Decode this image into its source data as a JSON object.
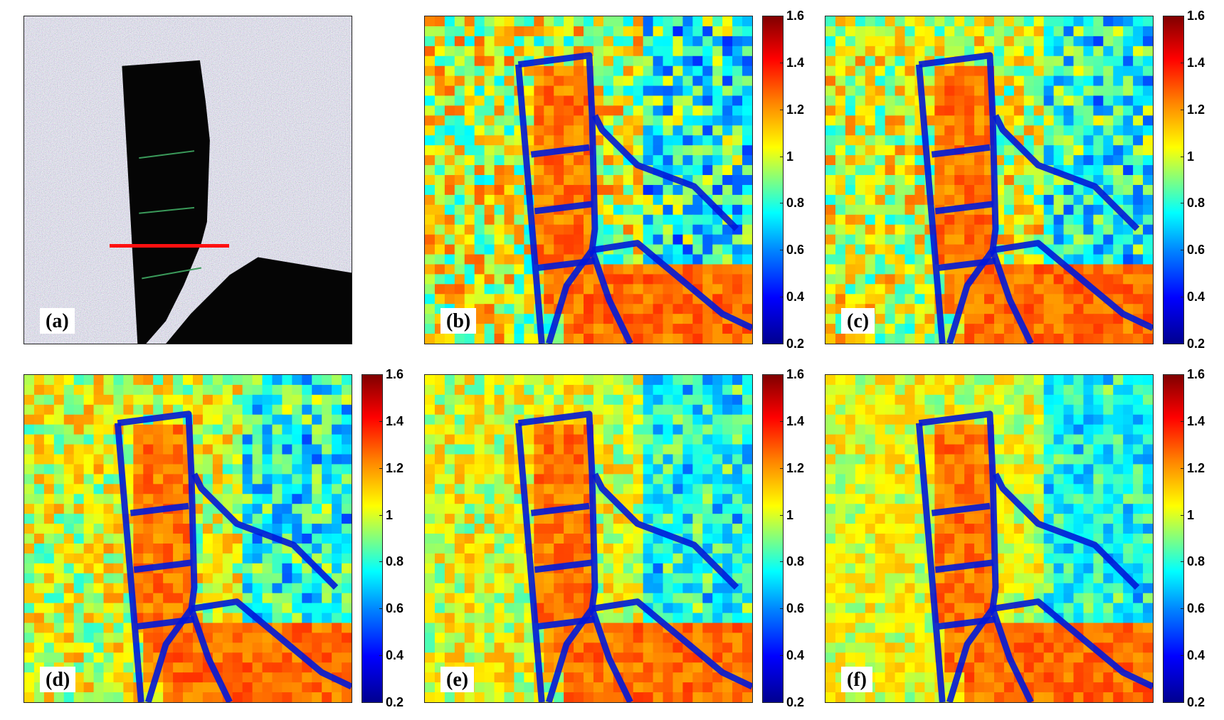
{
  "figure": {
    "panels": [
      {
        "id": "a",
        "label": "(a)",
        "kind": "sar-image"
      },
      {
        "id": "b",
        "label": "(b)",
        "kind": "heatmap"
      },
      {
        "id": "c",
        "label": "(c)",
        "kind": "heatmap"
      },
      {
        "id": "d",
        "label": "(d)",
        "kind": "heatmap"
      },
      {
        "id": "e",
        "label": "(e)",
        "kind": "heatmap"
      },
      {
        "id": "f",
        "label": "(f)",
        "kind": "heatmap"
      }
    ],
    "colorbar": {
      "ticks": [
        "1.6",
        "1.4",
        "1.2",
        "1",
        "0.8",
        "0.6",
        "0.4",
        "0.2"
      ],
      "range": [
        0.2,
        1.6
      ],
      "colormap": "jet"
    },
    "colors": {
      "profile_line": "#ff1010",
      "dark_region": "#050505"
    }
  }
}
